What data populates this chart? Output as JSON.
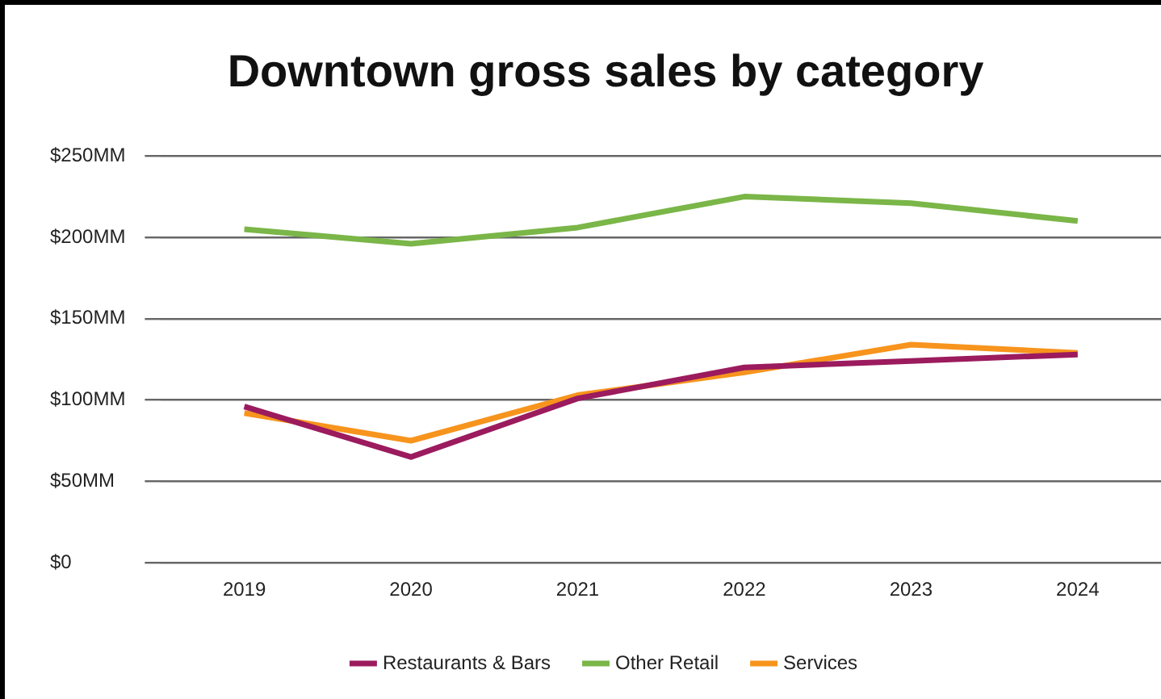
{
  "chart_data": {
    "type": "line",
    "title": "Downtown gross sales by category",
    "categories": [
      "2019",
      "2020",
      "2021",
      "2022",
      "2023",
      "2024"
    ],
    "series": [
      {
        "name": "Restaurants & Bars",
        "color": "#9b1b5e",
        "values": [
          96,
          65,
          101,
          120,
          124,
          128
        ]
      },
      {
        "name": "Other Retail",
        "color": "#7ab648",
        "values": [
          205,
          196,
          206,
          225,
          221,
          210
        ]
      },
      {
        "name": "Services",
        "color": "#f7941d",
        "values": [
          92,
          75,
          103,
          117,
          134,
          129
        ]
      }
    ],
    "ylim": [
      0,
      250
    ],
    "yticks": [
      {
        "value": 0,
        "label": "$0"
      },
      {
        "value": 50,
        "label": "$50MM"
      },
      {
        "value": 100,
        "label": "$100MM"
      },
      {
        "value": 150,
        "label": "$150MM"
      },
      {
        "value": 200,
        "label": "$200MM"
      },
      {
        "value": 250,
        "label": "$250MM"
      }
    ],
    "grid": "y",
    "legend": "bottom",
    "marker": "none",
    "line_style": "solid"
  }
}
